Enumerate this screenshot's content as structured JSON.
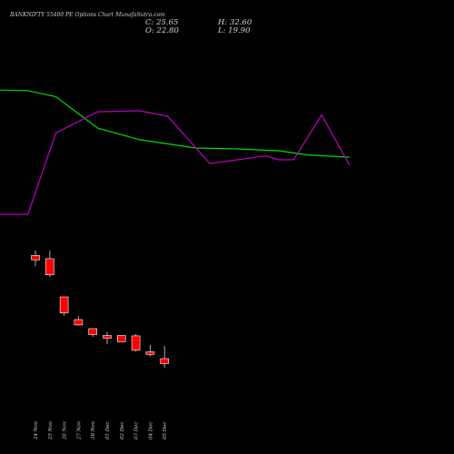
{
  "chart_data": {
    "type": "candlestick",
    "title": "BANKNIFTY 55400 PE Options Chart MunafaSutra.com",
    "ohlc_readout": {
      "open": "O: 22.80",
      "high": "H: 32.60",
      "low": "L: 19.90",
      "close": "C: 25.65"
    },
    "categories": [
      "24 Nov",
      "25 Nov",
      "26 Nov",
      "27 Nov",
      "28 Nov",
      "01 Dec",
      "02 Dec",
      "03 Dec",
      "04 Dec",
      "05 Dec"
    ],
    "candles": [
      {
        "open": 257.2,
        "high": 268.5,
        "low": 234.0,
        "close": 247.6
      },
      {
        "open": 250.2,
        "high": 268.5,
        "low": 209.8,
        "close": 214.8
      },
      {
        "open": 166.0,
        "high": 166.0,
        "low": 125.0,
        "close": 130.9
      },
      {
        "open": 116.0,
        "high": 123.6,
        "low": 102.8,
        "close": 104.3
      },
      {
        "open": 96.1,
        "high": 96.1,
        "low": 78.0,
        "close": 83.0
      },
      {
        "open": 81.0,
        "high": 88.9,
        "low": 61.9,
        "close": 75.0
      },
      {
        "open": 81.0,
        "high": 81.0,
        "low": 67.0,
        "close": 67.4
      },
      {
        "open": 80.2,
        "high": 84.1,
        "low": 45.3,
        "close": 48.8
      },
      {
        "open": 45.0,
        "high": 60.0,
        "low": 35.0,
        "close": 39.4
      },
      {
        "open": 30.0,
        "high": 58.0,
        "low": 10.0,
        "close": 19.0
      }
    ],
    "ylim": [
      0,
      300
    ],
    "indicator_lines": [
      {
        "color": "#00dd00",
        "x": [
          0,
          2,
          4,
          7,
          10,
          14,
          17,
          20,
          22,
          25
        ],
        "values": [
          90.0,
          89.6,
          85.2,
          62.4,
          54.0,
          48.0,
          47.4,
          46.0,
          43.0,
          41.3
        ]
      },
      {
        "color": "#c000c0",
        "x": [
          0,
          2,
          4,
          7,
          10,
          12,
          15,
          19,
          20,
          21,
          22,
          23,
          25
        ],
        "values": [
          0.0,
          0.0,
          59.0,
          74.3,
          75.0,
          71.0,
          36.8,
          42.3,
          39.4,
          39.6,
          55.7,
          72.0,
          35.5
        ]
      }
    ],
    "colors": {
      "up": "#00ee00",
      "down": "#ff0000",
      "wick": "#aaaaaa",
      "candle_border": "#ffffff",
      "background": "#000000"
    }
  }
}
